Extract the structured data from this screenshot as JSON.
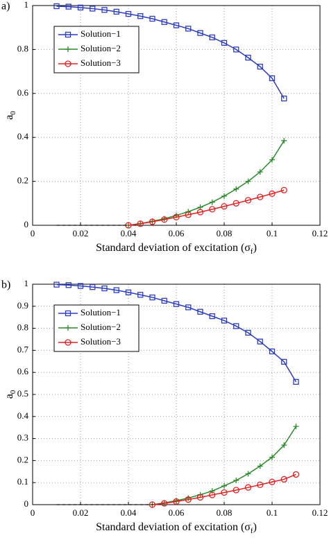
{
  "chart_data": [
    {
      "type": "line",
      "label": "a)",
      "xlabel": [
        "Standard deviation of excitation (σ",
        "f",
        ")"
      ],
      "ylabel": [
        "a",
        "0"
      ],
      "xlim": [
        0,
        0.12
      ],
      "xticks": [
        0,
        0.02,
        0.04,
        0.06,
        0.08,
        0.1,
        0.12
      ],
      "ylim": [
        0,
        1
      ],
      "yticks": [
        0,
        0.2,
        0.4,
        0.6,
        0.8,
        1
      ],
      "grid": true,
      "legend": "upper left",
      "series": [
        {
          "name": "Solution−1",
          "color": "#2b3cc0",
          "marker": "square",
          "x": [
            0.01,
            0.015,
            0.02,
            0.025,
            0.03,
            0.035,
            0.04,
            0.045,
            0.05,
            0.055,
            0.06,
            0.065,
            0.07,
            0.075,
            0.08,
            0.085,
            0.09,
            0.095,
            0.1,
            0.105
          ],
          "values": [
            0.997,
            0.995,
            0.991,
            0.986,
            0.98,
            0.972,
            0.962,
            0.952,
            0.94,
            0.925,
            0.91,
            0.895,
            0.875,
            0.855,
            0.83,
            0.8,
            0.763,
            0.722,
            0.669,
            0.577
          ]
        },
        {
          "name": "Solution−2",
          "color": "#2a8a2a",
          "marker": "plus",
          "x": [
            0.04,
            0.045,
            0.05,
            0.055,
            0.06,
            0.065,
            0.07,
            0.075,
            0.08,
            0.085,
            0.09,
            0.095,
            0.1,
            0.105
          ],
          "values": [
            0,
            0.008,
            0.018,
            0.03,
            0.045,
            0.062,
            0.082,
            0.105,
            0.133,
            0.165,
            0.2,
            0.243,
            0.298,
            0.385
          ]
        },
        {
          "name": "Solution−3",
          "color": "#e02020",
          "marker": "circle",
          "x": [
            0.04,
            0.045,
            0.05,
            0.055,
            0.06,
            0.065,
            0.07,
            0.075,
            0.08,
            0.085,
            0.09,
            0.095,
            0.1,
            0.105
          ],
          "values": [
            0,
            0.007,
            0.016,
            0.026,
            0.037,
            0.048,
            0.06,
            0.073,
            0.086,
            0.1,
            0.114,
            0.129,
            0.144,
            0.16
          ]
        },
        {
          "color": "#000000",
          "dash": true,
          "x": [
            0.01,
            0.04
          ],
          "values": [
            0,
            0
          ]
        }
      ]
    },
    {
      "type": "line",
      "label": "b)",
      "xlabel": [
        "Standard deviation of excitation (σ",
        "f",
        ")"
      ],
      "ylabel": [
        "a",
        "0"
      ],
      "xlim": [
        0,
        0.12
      ],
      "xticks": [
        0,
        0.02,
        0.04,
        0.06,
        0.08,
        0.1,
        0.12
      ],
      "ylim": [
        0,
        1
      ],
      "yticks": [
        0,
        0.1,
        0.2,
        0.3,
        0.4,
        0.5,
        0.6,
        0.7,
        0.8,
        0.9,
        1
      ],
      "grid": true,
      "legend": "upper left",
      "series": [
        {
          "name": "Solution−1",
          "color": "#2b3cc0",
          "marker": "square",
          "x": [
            0.01,
            0.015,
            0.02,
            0.025,
            0.03,
            0.035,
            0.04,
            0.045,
            0.05,
            0.055,
            0.06,
            0.065,
            0.07,
            0.075,
            0.08,
            0.085,
            0.09,
            0.095,
            0.1,
            0.105,
            0.11
          ],
          "values": [
            0.998,
            0.996,
            0.992,
            0.987,
            0.981,
            0.973,
            0.963,
            0.952,
            0.94,
            0.925,
            0.91,
            0.895,
            0.875,
            0.855,
            0.835,
            0.81,
            0.78,
            0.74,
            0.695,
            0.648,
            0.557
          ]
        },
        {
          "name": "Solution−2",
          "color": "#2a8a2a",
          "marker": "plus",
          "x": [
            0.05,
            0.055,
            0.06,
            0.065,
            0.07,
            0.075,
            0.08,
            0.085,
            0.09,
            0.095,
            0.1,
            0.105,
            0.11
          ],
          "values": [
            0,
            0.008,
            0.018,
            0.03,
            0.045,
            0.062,
            0.085,
            0.11,
            0.14,
            0.175,
            0.215,
            0.27,
            0.355
          ]
        },
        {
          "name": "Solution−3",
          "color": "#e02020",
          "marker": "circle",
          "x": [
            0.05,
            0.055,
            0.06,
            0.065,
            0.07,
            0.075,
            0.08,
            0.085,
            0.09,
            0.095,
            0.1,
            0.105,
            0.11
          ],
          "values": [
            0,
            0.006,
            0.014,
            0.023,
            0.033,
            0.044,
            0.055,
            0.066,
            0.078,
            0.09,
            0.103,
            0.115,
            0.137
          ]
        },
        {
          "color": "#000000",
          "dash": true,
          "x": [
            0.01,
            0.05
          ],
          "values": [
            0,
            0
          ]
        }
      ]
    }
  ]
}
